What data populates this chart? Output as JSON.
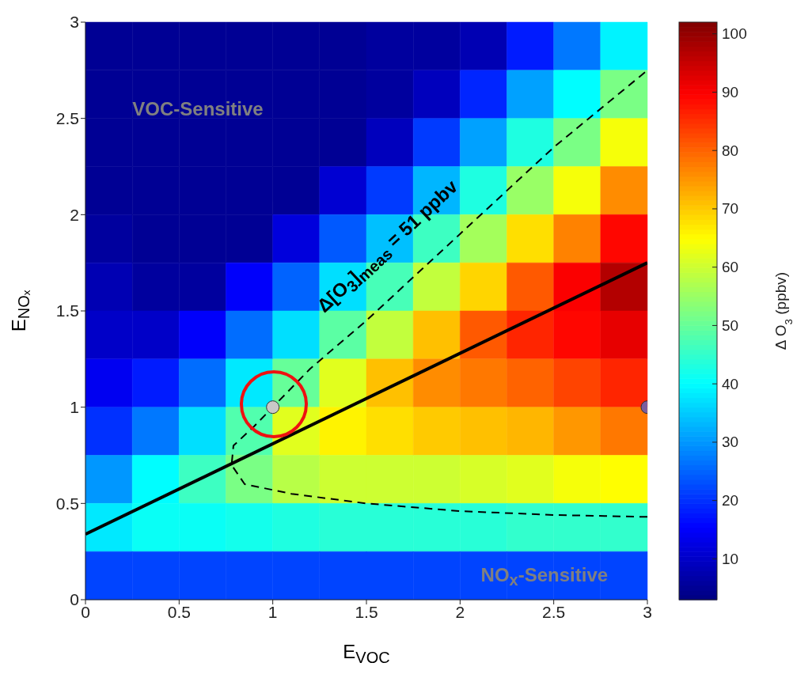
{
  "chart_data": {
    "type": "heatmap",
    "xlabel": "E$_{VOC}$",
    "ylabel": "E$_{NOₓ}$",
    "clabel": "Δ O$_{3}$ (ppbv)",
    "x": [
      0.125,
      0.375,
      0.625,
      0.875,
      1.125,
      1.375,
      1.625,
      1.875,
      2.125,
      2.375,
      2.625,
      2.875
    ],
    "y": [
      2.875,
      2.625,
      2.375,
      2.125,
      1.875,
      1.625,
      1.375,
      1.125,
      0.875,
      0.625,
      0.375,
      0.125
    ],
    "xlim": [
      0,
      3
    ],
    "ylim": [
      0,
      3
    ],
    "xticks": [
      0,
      0.5,
      1,
      1.5,
      2,
      2.5,
      3
    ],
    "yticks": [
      0,
      0.5,
      1,
      1.5,
      2,
      2.5,
      3
    ],
    "clim": [
      3,
      102
    ],
    "cticks": [
      10,
      20,
      30,
      40,
      50,
      60,
      70,
      80,
      90,
      100
    ],
    "cells": [
      [
        5,
        5,
        5,
        5,
        5,
        5,
        6,
        6,
        8,
        18,
        27,
        39
      ],
      [
        5,
        5,
        5,
        5,
        5,
        5,
        6,
        9,
        19,
        31,
        40,
        52
      ],
      [
        5,
        5,
        5,
        5,
        5,
        5,
        9,
        21,
        31,
        43,
        52,
        64
      ],
      [
        5,
        5,
        5,
        5,
        5,
        11,
        21,
        33,
        43,
        55,
        64,
        76
      ],
      [
        6,
        5,
        5,
        5,
        12,
        24,
        34,
        46,
        56,
        68,
        77,
        89
      ],
      [
        8,
        6,
        6,
        15,
        25,
        37,
        47,
        59,
        69,
        81,
        90,
        97
      ],
      [
        10,
        10,
        15,
        26,
        37,
        49,
        59,
        71,
        81,
        86,
        89,
        92
      ],
      [
        14,
        18,
        26,
        38,
        50,
        62,
        71,
        76,
        78,
        80,
        83,
        86
      ],
      [
        20,
        27,
        37,
        48,
        62,
        66,
        68,
        70,
        71,
        72,
        75,
        78
      ],
      [
        30,
        40,
        46,
        52,
        58,
        60,
        60,
        60,
        61,
        62,
        64,
        65
      ],
      [
        38,
        41,
        41,
        42,
        43,
        44,
        44,
        44,
        44,
        45,
        45,
        45
      ],
      [
        22,
        22,
        22,
        22,
        22,
        22,
        22,
        22,
        22,
        22,
        22,
        22
      ]
    ],
    "series": [
      {
        "type": "line",
        "color": "#000000",
        "line_style": "dashed",
        "marker": "none",
        "x": [
          3,
          2.5,
          2,
          1.5,
          1.1,
          0.85,
          0.78,
          0.79,
          0.9,
          1,
          1.2,
          1.5,
          2,
          2.5,
          3
        ],
        "values": [
          0.43,
          0.44,
          0.46,
          0.5,
          0.55,
          0.6,
          0.7,
          0.8,
          0.9,
          1,
          1.2,
          1.45,
          1.9,
          2.35,
          2.75
        ]
      },
      {
        "type": "line",
        "color": "#000000",
        "line_style": "solid",
        "marker": "none",
        "x": [
          0,
          3
        ],
        "values": [
          0.34,
          1.75
        ]
      },
      {
        "type": "scatter",
        "color": "#c8c8c8",
        "marker": "circle",
        "x": [
          1
        ],
        "values": [
          1
        ]
      },
      {
        "type": "scatter",
        "color": "#7b5e9e",
        "marker": "circle",
        "x": [
          3
        ],
        "values": [
          1
        ]
      }
    ],
    "annotations": [
      "VOC-Sensitive",
      "Δ[O$_{3}$]$_{meas}$ = 51 ppbv",
      "NO$_{x}$-Sensitive"
    ]
  }
}
